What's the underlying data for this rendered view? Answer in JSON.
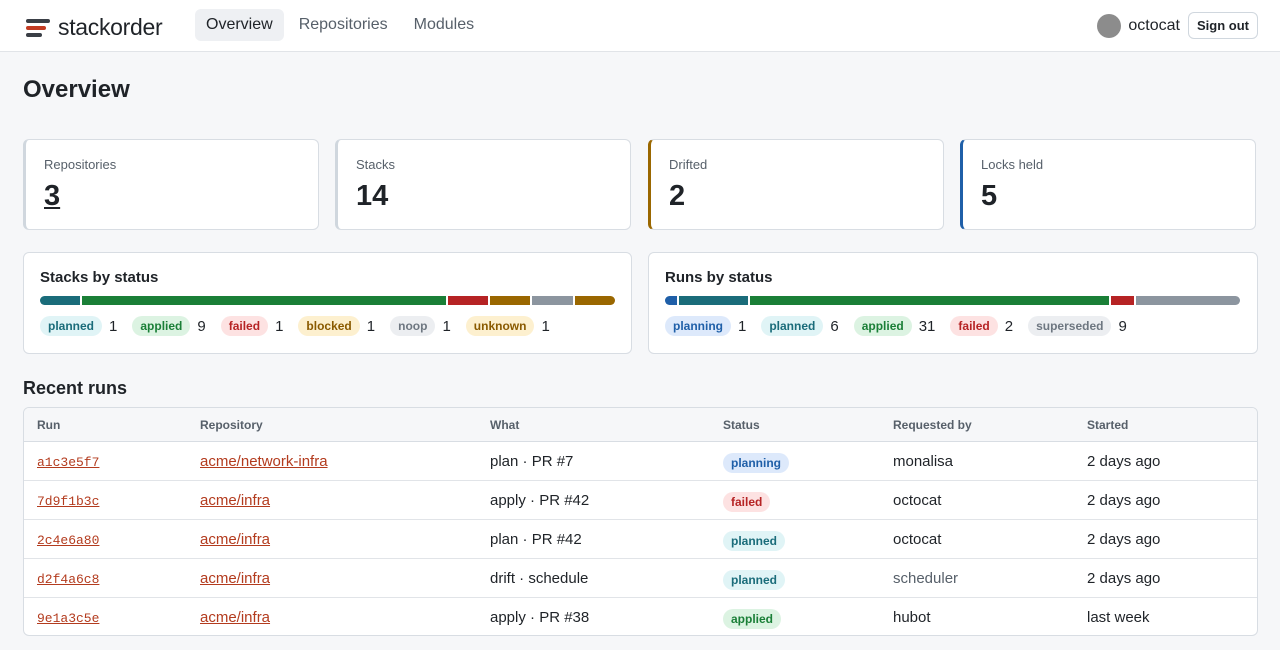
{
  "header": {
    "brand": "stackorder",
    "nav": [
      "Overview",
      "Repositories",
      "Modules"
    ],
    "active_nav": "Overview",
    "username": "octocat",
    "signout_label": "Sign out"
  },
  "page_title": "Overview",
  "stats": [
    {
      "label": "Repositories",
      "value": "3"
    },
    {
      "label": "Stacks",
      "value": "14"
    },
    {
      "label": "Drifted",
      "value": "2"
    },
    {
      "label": "Locks held",
      "value": "5"
    }
  ],
  "stacks_by_status": {
    "title": "Stacks by status",
    "items": [
      {
        "status": "planned",
        "count": "1",
        "color": "#1a6c7a"
      },
      {
        "status": "applied",
        "count": "9",
        "color": "#1a7f37"
      },
      {
        "status": "failed",
        "count": "1",
        "color": "#b62324"
      },
      {
        "status": "blocked",
        "count": "1",
        "color": "#9a6700"
      },
      {
        "status": "noop",
        "count": "1",
        "color": "#8c959f"
      },
      {
        "status": "unknown",
        "count": "1",
        "color": "#9a6700"
      }
    ]
  },
  "runs_by_status": {
    "title": "Runs by status",
    "items": [
      {
        "status": "planning",
        "count": "1",
        "color": "#1f5fa8"
      },
      {
        "status": "planned",
        "count": "6",
        "color": "#1a6c7a"
      },
      {
        "status": "applied",
        "count": "31",
        "color": "#1a7f37"
      },
      {
        "status": "failed",
        "count": "2",
        "color": "#b62324"
      },
      {
        "status": "superseded",
        "count": "9",
        "color": "#8c959f"
      }
    ]
  },
  "recent_runs": {
    "title": "Recent runs",
    "columns": [
      "Run",
      "Repository",
      "What",
      "Status",
      "Requested by",
      "Started"
    ],
    "rows": [
      {
        "run": "a1c3e5f7",
        "repo": "acme/network-infra",
        "what": "plan · PR #7",
        "status": "planning",
        "by": "monalisa",
        "started": "2 days ago"
      },
      {
        "run": "7d9f1b3c",
        "repo": "acme/infra",
        "what": "apply · PR #42",
        "status": "failed",
        "by": "octocat",
        "started": "2 days ago"
      },
      {
        "run": "2c4e6a80",
        "repo": "acme/infra",
        "what": "plan · PR #42",
        "status": "planned",
        "by": "octocat",
        "started": "2 days ago"
      },
      {
        "run": "d2f4a6c8",
        "repo": "acme/infra",
        "what": "drift · schedule",
        "status": "planned",
        "by": "scheduler",
        "started": "2 days ago"
      },
      {
        "run": "9e1a3c5e",
        "repo": "acme/infra",
        "what": "apply · PR #38",
        "status": "applied",
        "by": "hubot",
        "started": "last week"
      }
    ]
  }
}
